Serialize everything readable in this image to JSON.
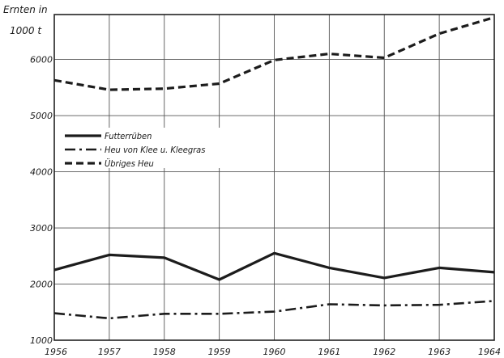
{
  "chart_data": {
    "type": "line",
    "ylabel_lines": [
      "Ernten in",
      "1000 t"
    ],
    "ylim": [
      1000,
      6800
    ],
    "yticks": [
      1000,
      2000,
      3000,
      4000,
      5000,
      6000
    ],
    "ytick_labels": [
      "1000",
      "2000",
      "3000",
      "4000",
      "5000",
      "6000"
    ],
    "x": [
      "1956",
      "1957",
      "1958",
      "1959",
      "1960",
      "1961",
      "1962",
      "1963",
      "1964"
    ],
    "grid": true,
    "legend_position": "left",
    "series": [
      {
        "name": "Futterrüben",
        "style": "solid",
        "values": [
          2250,
          2520,
          2470,
          2080,
          2550,
          2290,
          2110,
          2290,
          2210
        ]
      },
      {
        "name": "Heu von Klee u. Kleegras",
        "style": "dashdot",
        "values": [
          1480,
          1390,
          1470,
          1470,
          1510,
          1640,
          1620,
          1630,
          1700
        ]
      },
      {
        "name": "Übriges Heu",
        "style": "dashed",
        "values": [
          5630,
          5460,
          5480,
          5570,
          5990,
          6100,
          6030,
          6460,
          6750
        ]
      }
    ]
  }
}
